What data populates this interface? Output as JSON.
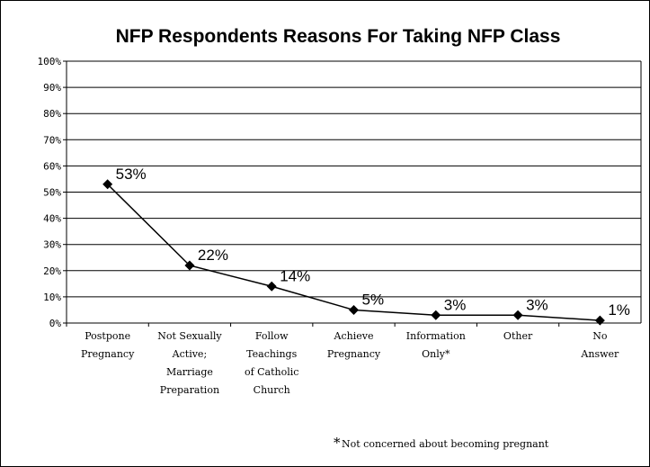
{
  "chart_data": {
    "type": "line",
    "title": "NFP Respondents Reasons For Taking NFP Class",
    "xlabel": "",
    "ylabel": "",
    "ylim": [
      0,
      100
    ],
    "yticks": [
      "0%",
      "10%",
      "20%",
      "30%",
      "40%",
      "50%",
      "60%",
      "70%",
      "80%",
      "90%",
      "100%"
    ],
    "grid": true,
    "categories": [
      [
        "Postpone",
        "Pregnancy"
      ],
      [
        "Not Sexually",
        "Active;",
        "Marriage",
        "Preparation"
      ],
      [
        "Follow",
        "Teachings",
        "of Catholic",
        "Church"
      ],
      [
        "Achieve",
        "Pregnancy"
      ],
      [
        "Information",
        "Only*"
      ],
      [
        "Other"
      ],
      [
        "No",
        "Answer"
      ]
    ],
    "values": [
      53,
      22,
      14,
      5,
      3,
      3,
      1
    ],
    "data_labels": [
      "53%",
      "22%",
      "14%",
      "5%",
      "3%",
      "3%",
      "1%"
    ],
    "footnote": {
      "star": "*",
      "text": "Not concerned about becoming pregnant"
    },
    "colors": {
      "line": "#000000",
      "grid": "#000000",
      "border": "#000000"
    }
  }
}
